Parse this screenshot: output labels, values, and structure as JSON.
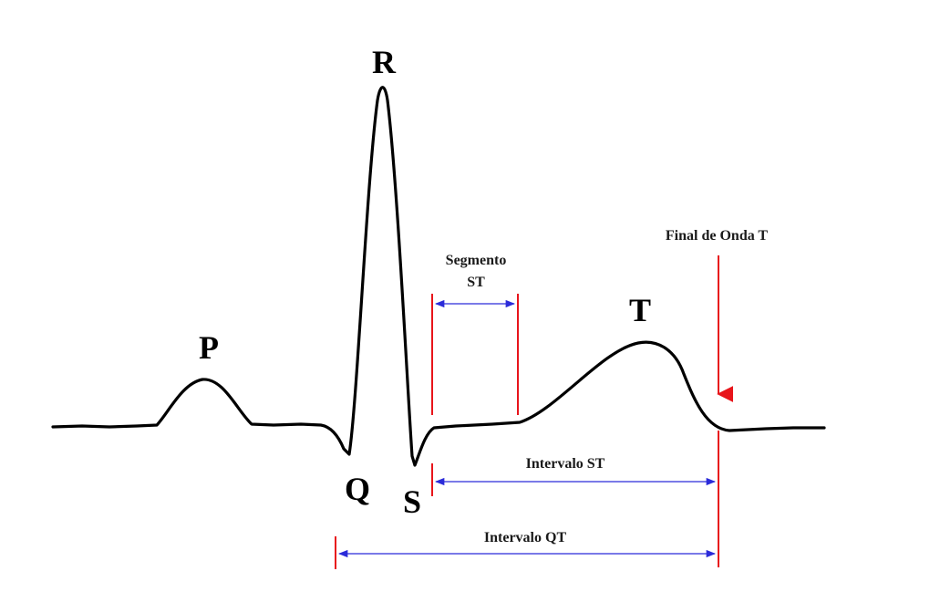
{
  "colors": {
    "background": "#ffffff",
    "trace": "#000000",
    "marker_red": "#e8151b",
    "interval_blue": "#2b2bd9"
  },
  "waves": {
    "p": "P",
    "q": "Q",
    "r": "R",
    "s": "S",
    "t": "T"
  },
  "annotations": {
    "st_segment_line1": "Segmento",
    "st_segment_line2": "ST",
    "t_wave_end": "Final de Onda T",
    "st_interval": "Intervalo  ST",
    "qt_interval": "Intervalo  QT"
  }
}
